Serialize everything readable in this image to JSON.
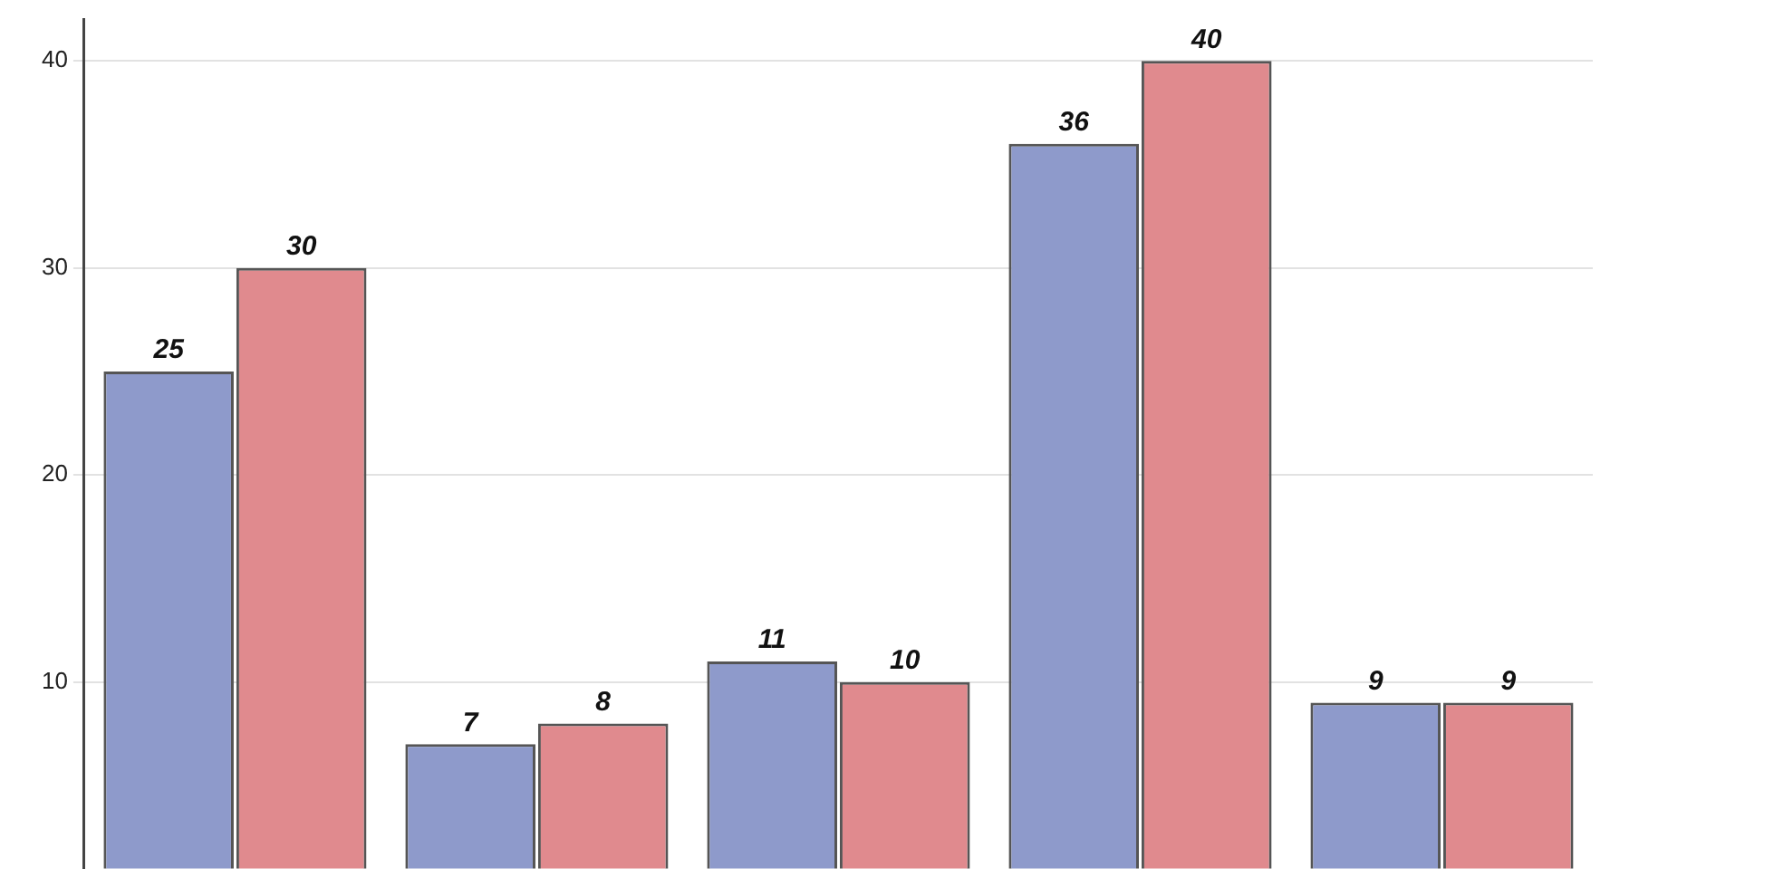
{
  "chart_data": {
    "type": "bar",
    "categories": [
      null,
      null,
      null,
      null,
      null
    ],
    "series": [
      {
        "color": "#8e9acb",
        "values": [
          25,
          7,
          11,
          36,
          9
        ]
      },
      {
        "color": "#e08a8e",
        "values": [
          30,
          8,
          10,
          40,
          9
        ]
      }
    ],
    "ylim": [
      1,
      42
    ],
    "yticks": [
      10,
      20,
      30,
      40
    ],
    "grid": "y",
    "legend": false,
    "data_labels": true,
    "tick_labels": "y"
  }
}
